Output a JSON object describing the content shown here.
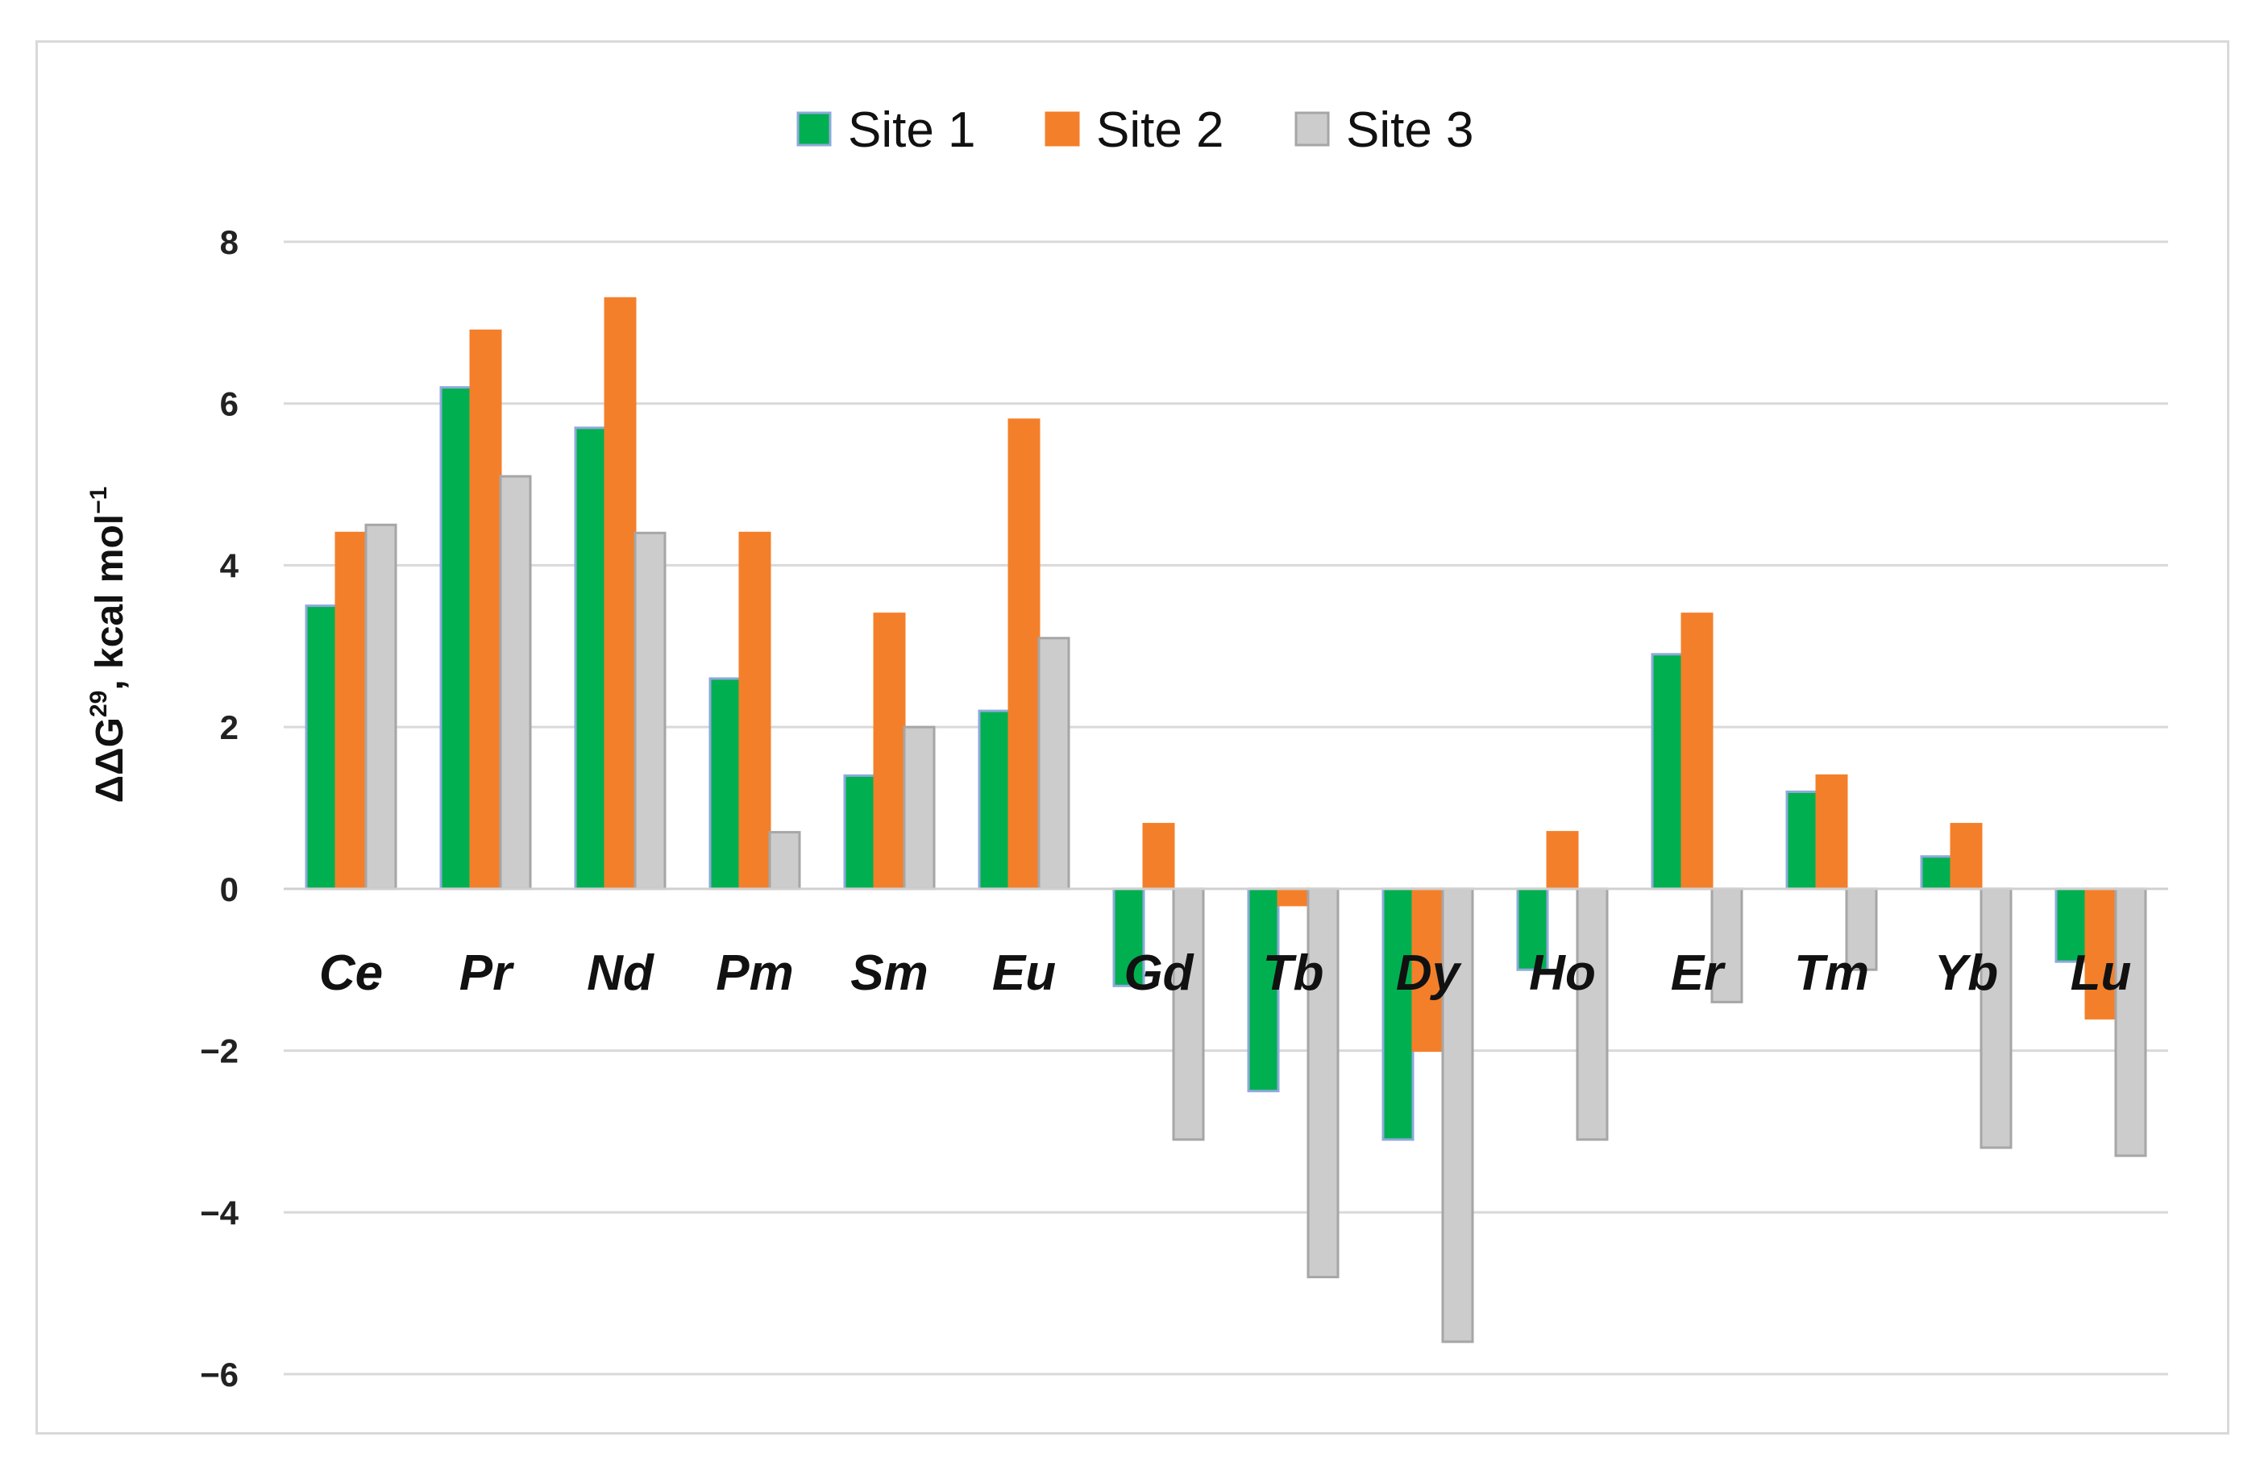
{
  "chart_data": {
    "type": "bar",
    "title": "",
    "ylabel_main": "ΔΔG",
    "ylabel_sup": "29",
    "ylabel_units": ", kcal mol",
    "ylabel_units_sup": "−1",
    "xlabel": "",
    "ylim": [
      -6,
      8
    ],
    "yticks": [
      -6,
      -4,
      -2,
      0,
      2,
      4,
      6,
      8
    ],
    "ytick_labels": [
      "−6",
      "−4",
      "−2",
      "0",
      "2",
      "4",
      "6",
      "8"
    ],
    "grid": true,
    "legend_position": "top-center",
    "categories": [
      "Ce",
      "Pr",
      "Nd",
      "Pm",
      "Sm",
      "Eu",
      "Gd",
      "Tb",
      "Dy",
      "Ho",
      "Er",
      "Tm",
      "Yb",
      "Lu"
    ],
    "series": [
      {
        "name": "Site 1",
        "color": "#00b050",
        "border": "#8ea9db",
        "values": [
          3.5,
          6.2,
          5.7,
          2.6,
          1.4,
          2.2,
          -1.2,
          -2.5,
          -3.1,
          -1.0,
          2.9,
          1.2,
          0.4,
          -0.9
        ]
      },
      {
        "name": "Site 2",
        "color": "#f47f2a",
        "border": "#f47f2a",
        "values": [
          4.4,
          6.9,
          7.3,
          4.4,
          3.4,
          5.8,
          0.8,
          -0.2,
          -2.0,
          0.7,
          3.4,
          1.4,
          0.8,
          -1.6
        ]
      },
      {
        "name": "Site 3",
        "color": "#cccccc",
        "border": "#a6a6a6",
        "values": [
          4.5,
          5.1,
          4.4,
          0.7,
          2.0,
          3.1,
          -3.1,
          -4.8,
          -5.6,
          -3.1,
          -1.4,
          -1.0,
          -3.2,
          -3.3
        ]
      }
    ]
  }
}
